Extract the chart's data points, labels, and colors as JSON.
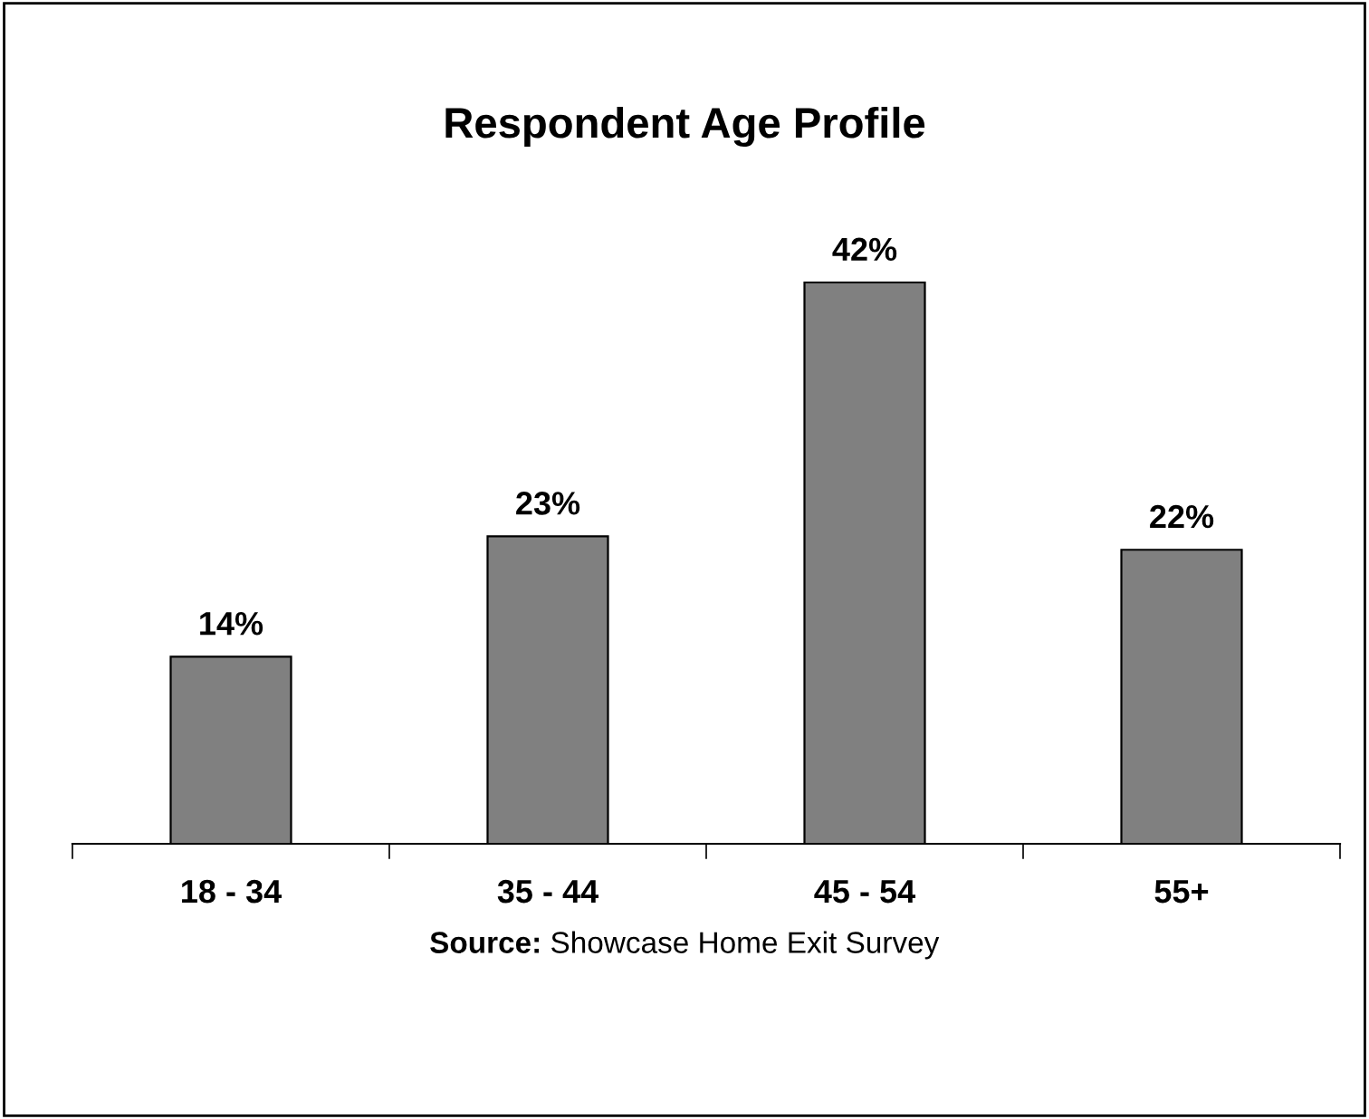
{
  "chart_data": {
    "type": "bar",
    "title": "Respondent Age Profile",
    "categories": [
      "18 - 34",
      "35 - 44",
      "45 - 54",
      "55+"
    ],
    "values": [
      14,
      23,
      42,
      22
    ],
    "color": "#808080",
    "value_labels": [
      "14%",
      "23%",
      "42%",
      "22%"
    ],
    "annotations": [
      "Source: Showcase Home Exit Survey"
    ],
    "grid": false,
    "legend": false
  }
}
